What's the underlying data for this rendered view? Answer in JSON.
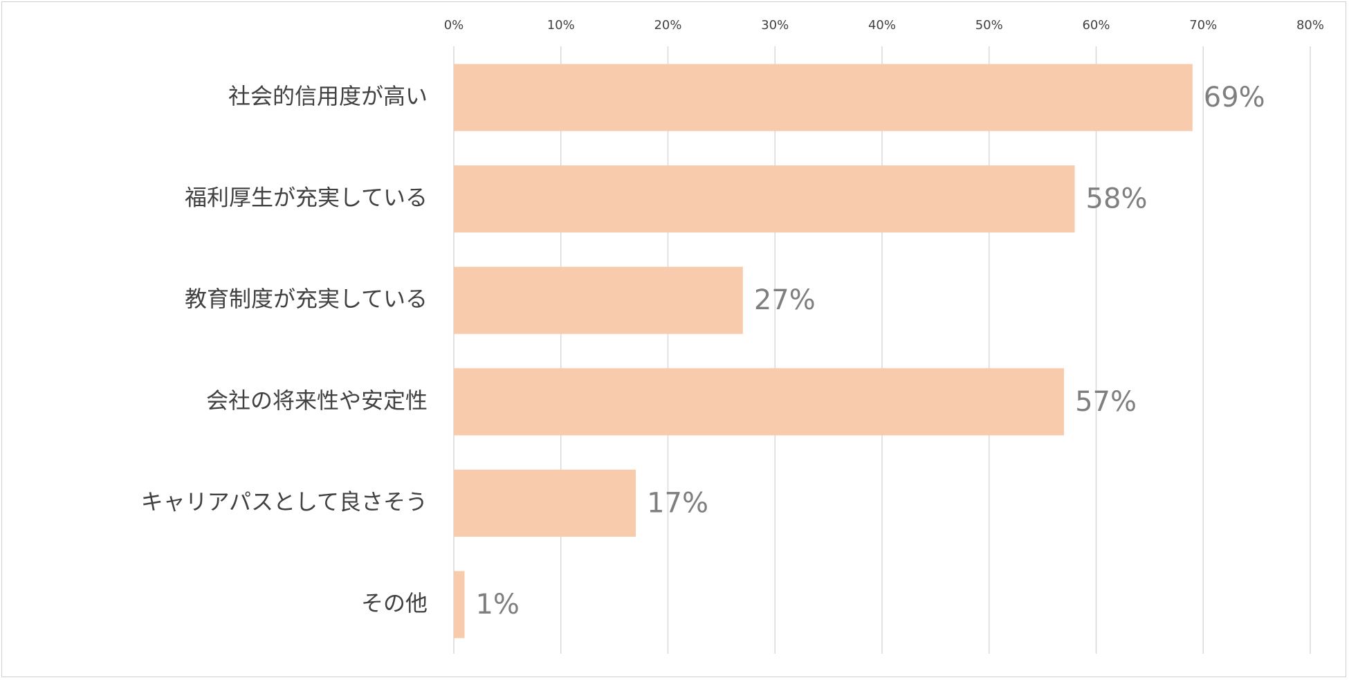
{
  "chart_data": {
    "type": "bar",
    "orientation": "horizontal",
    "title": "",
    "xlabel": "",
    "ylabel": "",
    "categories": [
      "社会的信用度が高い",
      "福利厚生が充実している",
      "教育制度が充実している",
      "会社の将来性や安定性",
      "キャリアパスとして良さそう",
      "その他"
    ],
    "values": [
      69,
      58,
      27,
      57,
      17,
      1
    ],
    "data_labels": [
      "69%",
      "58%",
      "27%",
      "57%",
      "17%",
      "1%"
    ],
    "x_ticks": [
      "0%",
      "10%",
      "20%",
      "30%",
      "40%",
      "50%",
      "60%",
      "70%",
      "80%"
    ],
    "xlim": [
      0,
      80
    ],
    "x_axis_position": "top",
    "gridlines": "vertical",
    "legend": "none",
    "bar_color": "#f8cbad",
    "grid_color": "#d9d9d9",
    "label_color": "#404040",
    "data_label_color": "#7f7f7f"
  }
}
